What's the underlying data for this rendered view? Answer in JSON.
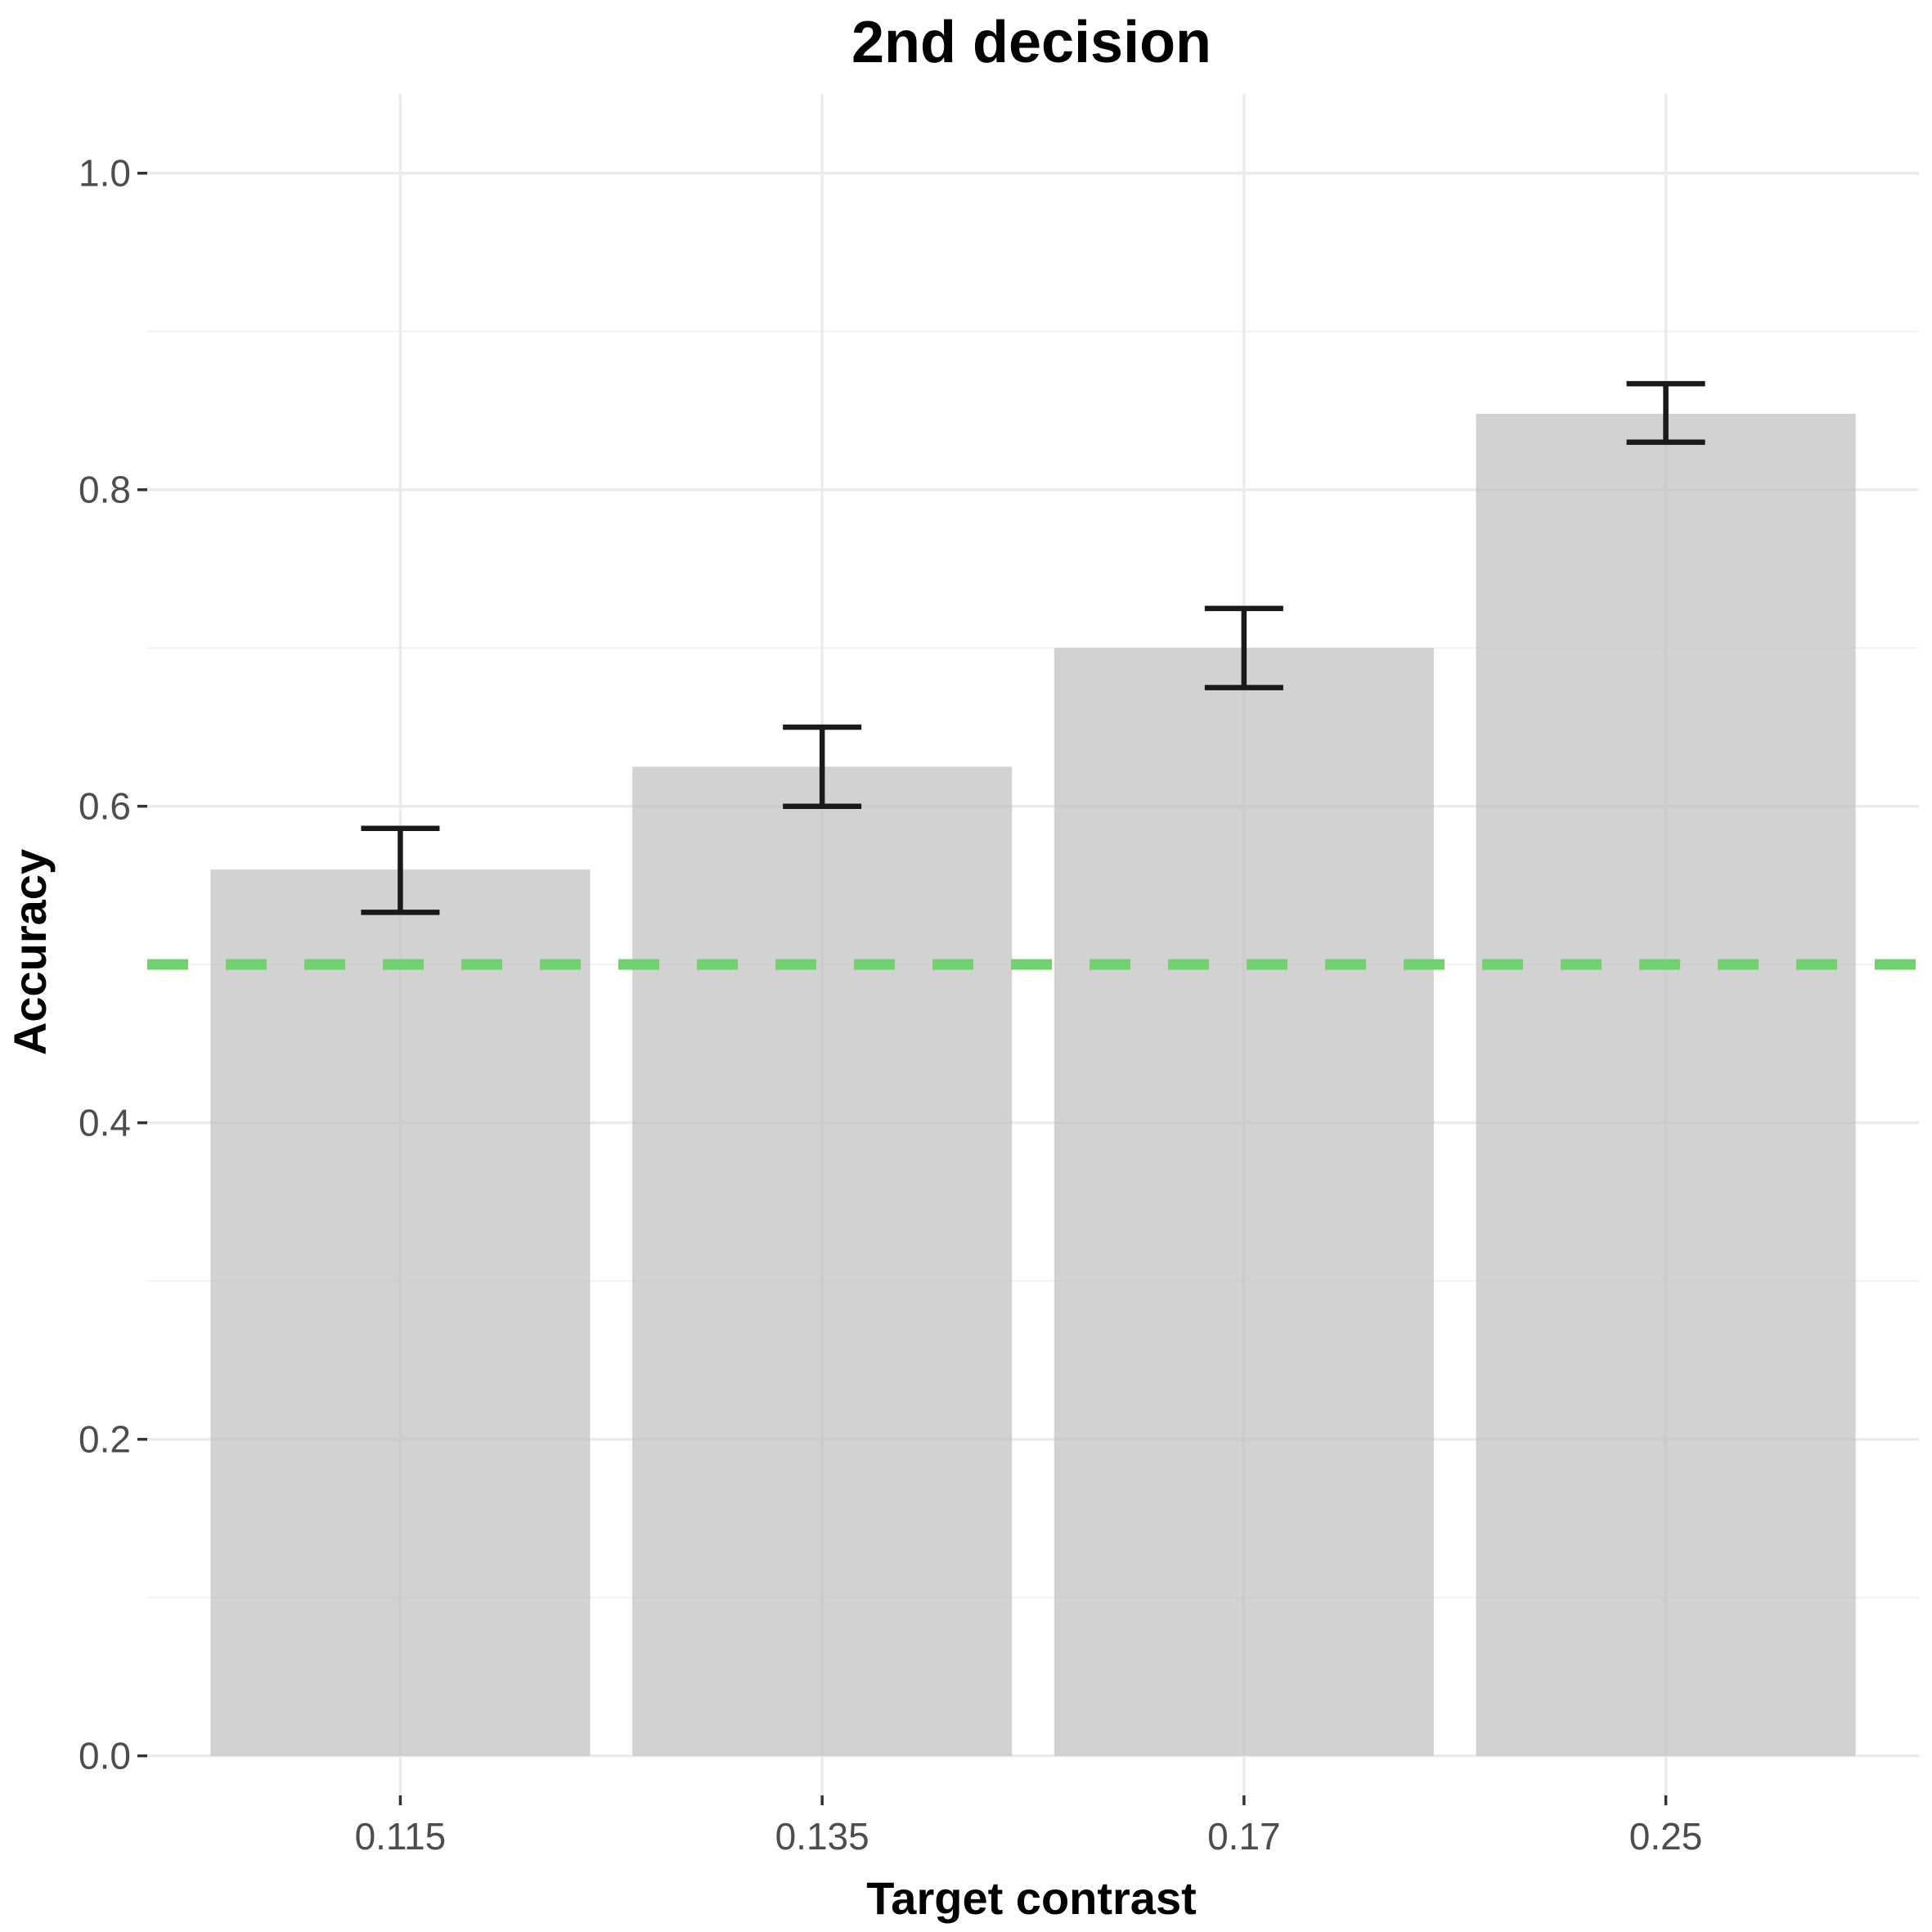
{
  "chart_data": {
    "type": "bar",
    "title": "2nd decision",
    "xlabel": "Target contrast",
    "ylabel": "Accuracy",
    "categories": [
      "0.115",
      "0.135",
      "0.17",
      "0.25"
    ],
    "values": [
      0.56,
      0.625,
      0.7,
      0.848
    ],
    "error_lower": [
      0.533,
      0.6,
      0.675,
      0.83
    ],
    "error_upper": [
      0.586,
      0.65,
      0.725,
      0.867
    ],
    "ylim": [
      -0.025,
      1.05
    ],
    "yticks": [
      0.0,
      0.2,
      0.4,
      0.6,
      0.8,
      1.0
    ],
    "ytick_labels": [
      "0.0",
      "0.2",
      "0.4",
      "0.6",
      "0.8",
      "1.0"
    ],
    "reference_line": {
      "y": 0.5,
      "style": "dashed",
      "color": "#6fd16f"
    },
    "bar_color": "#d3d3d3",
    "grid": true,
    "legend": "none"
  }
}
